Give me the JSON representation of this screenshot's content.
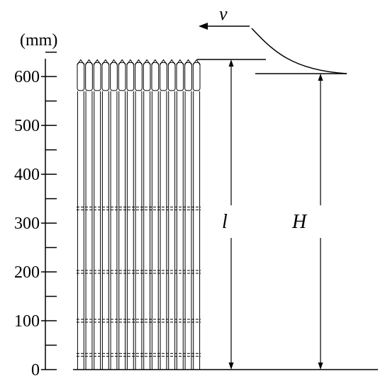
{
  "axis": {
    "unit_label": "(mm)",
    "ticks": [
      {
        "label": "0",
        "value": 0
      },
      {
        "label": "100",
        "value": 100
      },
      {
        "label": "200",
        "value": 200
      },
      {
        "label": "300",
        "value": 300
      },
      {
        "label": "400",
        "value": 400
      },
      {
        "label": "500",
        "value": 500
      },
      {
        "label": "600",
        "value": 600
      }
    ],
    "max_value": 650
  },
  "rods": {
    "count": 15,
    "spacer_levels": [
      30,
      100,
      200,
      330
    ]
  },
  "labels": {
    "velocity": "v",
    "length": "l",
    "height": "H"
  },
  "colors": {
    "line": "#000000",
    "background": "#ffffff"
  }
}
